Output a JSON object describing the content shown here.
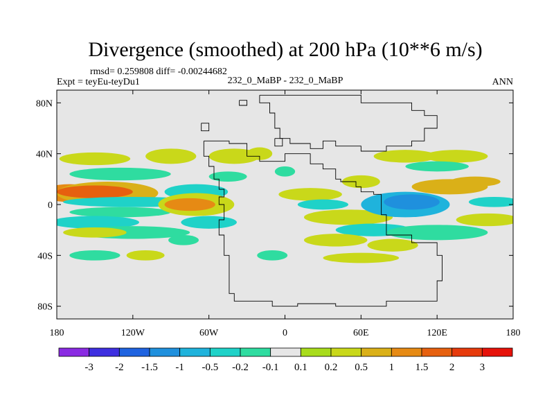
{
  "chart_data": {
    "type": "heatmap",
    "title": "Divergence (smoothed) at 200 hPa (10**6 m/s)",
    "stats_text": "rmsd= 0.259808 diff= -0.00244682",
    "experiment": "Expt = teyEu-teyDu1",
    "case": "232_0_MaBP - 232_0_MaBP",
    "period": "ANN",
    "x_ticks": [
      "180",
      "120W",
      "60W",
      "0",
      "60E",
      "120E",
      "180"
    ],
    "x_tick_values": [
      -180,
      -120,
      -60,
      0,
      60,
      120,
      180
    ],
    "y_ticks": [
      "80N",
      "40N",
      "0",
      "40S",
      "80S"
    ],
    "y_tick_values": [
      80,
      40,
      0,
      -40,
      -80
    ],
    "xlim": [
      -180,
      180
    ],
    "ylim": [
      -90,
      90
    ],
    "colorbar": {
      "labels": [
        "-3",
        "-2",
        "-1.5",
        "-1",
        "-0.5",
        "-0.2",
        "-0.1",
        "0.1",
        "0.2",
        "0.5",
        "1",
        "1.5",
        "2",
        "3"
      ],
      "colors": [
        "#8a2be2",
        "#3e2fe0",
        "#1f63e0",
        "#1f90dd",
        "#1fb3dc",
        "#1fd2c8",
        "#2fdca0",
        "#e6e6e6",
        "#a8dc1c",
        "#c9d81a",
        "#dab018",
        "#e68a14",
        "#e6600f",
        "#e63a0c",
        "#e6120a"
      ]
    },
    "blobs": [
      {
        "lon": -170,
        "lat": 9,
        "rx": 22,
        "ry": 7,
        "v": 1.0
      },
      {
        "lon": -140,
        "lat": 9,
        "rx": 40,
        "ry": 9,
        "v": 0.5
      },
      {
        "lon": -150,
        "lat": 10,
        "rx": 30,
        "ry": 5,
        "v": 1.5
      },
      {
        "lon": -120,
        "lat": 2,
        "rx": 55,
        "ry": 4,
        "v": -0.4
      },
      {
        "lon": -130,
        "lat": -6,
        "rx": 40,
        "ry": 4,
        "v": -0.15
      },
      {
        "lon": -150,
        "lat": -14,
        "rx": 35,
        "ry": 5,
        "v": -0.4
      },
      {
        "lon": -120,
        "lat": -22,
        "rx": 45,
        "ry": 5,
        "v": -0.15
      },
      {
        "lon": -150,
        "lat": -22,
        "rx": 25,
        "ry": 4,
        "v": 0.3
      },
      {
        "lon": -130,
        "lat": 24,
        "rx": 40,
        "ry": 5,
        "v": -0.15
      },
      {
        "lon": -150,
        "lat": 36,
        "rx": 28,
        "ry": 5,
        "v": 0.3
      },
      {
        "lon": -90,
        "lat": 38,
        "rx": 20,
        "ry": 6,
        "v": 0.3
      },
      {
        "lon": -70,
        "lat": 10,
        "rx": 25,
        "ry": 6,
        "v": -0.3
      },
      {
        "lon": -70,
        "lat": 0,
        "rx": 30,
        "ry": 9,
        "v": 0.4
      },
      {
        "lon": -75,
        "lat": 0,
        "rx": 20,
        "ry": 5,
        "v": 1.2
      },
      {
        "lon": -60,
        "lat": -14,
        "rx": 22,
        "ry": 5,
        "v": -0.3
      },
      {
        "lon": -40,
        "lat": 38,
        "rx": 20,
        "ry": 6,
        "v": 0.3
      },
      {
        "lon": -45,
        "lat": 22,
        "rx": 15,
        "ry": 4,
        "v": -0.15
      },
      {
        "lon": -80,
        "lat": -28,
        "rx": 12,
        "ry": 4,
        "v": -0.15
      },
      {
        "lon": -20,
        "lat": 40,
        "rx": 10,
        "ry": 5,
        "v": 0.25
      },
      {
        "lon": 0,
        "lat": 26,
        "rx": 8,
        "ry": 4,
        "v": -0.15
      },
      {
        "lon": 20,
        "lat": 8,
        "rx": 25,
        "ry": 5,
        "v": 0.3
      },
      {
        "lon": 30,
        "lat": 0,
        "rx": 20,
        "ry": 4,
        "v": -0.3
      },
      {
        "lon": 50,
        "lat": -10,
        "rx": 35,
        "ry": 6,
        "v": 0.4
      },
      {
        "lon": 70,
        "lat": -20,
        "rx": 30,
        "ry": 5,
        "v": -0.3
      },
      {
        "lon": 40,
        "lat": -28,
        "rx": 25,
        "ry": 5,
        "v": 0.3
      },
      {
        "lon": 95,
        "lat": 0,
        "rx": 35,
        "ry": 10,
        "v": -0.6
      },
      {
        "lon": 100,
        "lat": 2,
        "rx": 22,
        "ry": 6,
        "v": -1.1
      },
      {
        "lon": 130,
        "lat": 14,
        "rx": 30,
        "ry": 6,
        "v": 0.5
      },
      {
        "lon": 150,
        "lat": 18,
        "rx": 20,
        "ry": 4,
        "v": 0.9
      },
      {
        "lon": 160,
        "lat": -12,
        "rx": 25,
        "ry": 5,
        "v": 0.3
      },
      {
        "lon": 165,
        "lat": 2,
        "rx": 20,
        "ry": 4,
        "v": -0.3
      },
      {
        "lon": 120,
        "lat": -22,
        "rx": 40,
        "ry": 6,
        "v": -0.15
      },
      {
        "lon": 85,
        "lat": -32,
        "rx": 20,
        "ry": 5,
        "v": 0.3
      },
      {
        "lon": 95,
        "lat": 38,
        "rx": 25,
        "ry": 5,
        "v": 0.3
      },
      {
        "lon": 135,
        "lat": 38,
        "rx": 25,
        "ry": 5,
        "v": 0.25
      },
      {
        "lon": 120,
        "lat": 30,
        "rx": 25,
        "ry": 4,
        "v": -0.15
      },
      {
        "lon": 60,
        "lat": 18,
        "rx": 15,
        "ry": 5,
        "v": 0.3
      },
      {
        "lon": -150,
        "lat": -40,
        "rx": 20,
        "ry": 4,
        "v": -0.15
      },
      {
        "lon": -110,
        "lat": -40,
        "rx": 15,
        "ry": 4,
        "v": 0.25
      },
      {
        "lon": -10,
        "lat": -40,
        "rx": 12,
        "ry": 4,
        "v": -0.15
      },
      {
        "lon": 60,
        "lat": -42,
        "rx": 30,
        "ry": 4,
        "v": 0.25
      }
    ],
    "continent_outline": [
      [
        [
          -64,
          50
        ],
        [
          -64,
          38
        ],
        [
          -60,
          38
        ],
        [
          -60,
          30
        ],
        [
          -56,
          30
        ],
        [
          -56,
          20
        ],
        [
          -52,
          20
        ],
        [
          -52,
          12
        ],
        [
          -48,
          12
        ],
        [
          -48,
          6
        ],
        [
          -52,
          6
        ],
        [
          -52,
          0
        ],
        [
          -48,
          0
        ],
        [
          -48,
          -12
        ],
        [
          -52,
          -12
        ],
        [
          -52,
          -24
        ],
        [
          -48,
          -24
        ],
        [
          -48,
          -40
        ],
        [
          -44,
          -40
        ],
        [
          -44,
          -70
        ],
        [
          -40,
          -70
        ],
        [
          -40,
          -76
        ],
        [
          -10,
          -76
        ],
        [
          -10,
          -80
        ],
        [
          10,
          -80
        ],
        [
          10,
          -78
        ],
        [
          40,
          -78
        ],
        [
          40,
          -80
        ],
        [
          80,
          -80
        ],
        [
          80,
          -76
        ],
        [
          120,
          -76
        ],
        [
          120,
          -60
        ],
        [
          124,
          -60
        ],
        [
          124,
          -40
        ],
        [
          120,
          -40
        ],
        [
          120,
          -30
        ],
        [
          100,
          -30
        ],
        [
          100,
          -24
        ],
        [
          80,
          -24
        ],
        [
          80,
          -8
        ],
        [
          76,
          -8
        ],
        [
          76,
          8
        ],
        [
          70,
          8
        ],
        [
          70,
          10
        ],
        [
          60,
          10
        ],
        [
          60,
          14
        ],
        [
          56,
          14
        ],
        [
          56,
          18
        ],
        [
          44,
          18
        ],
        [
          44,
          20
        ],
        [
          40,
          20
        ],
        [
          40,
          28
        ],
        [
          30,
          28
        ],
        [
          30,
          32
        ],
        [
          20,
          32
        ],
        [
          20,
          40
        ],
        [
          0,
          40
        ],
        [
          0,
          34
        ],
        [
          -20,
          34
        ],
        [
          -20,
          38
        ],
        [
          -30,
          38
        ],
        [
          -30,
          48
        ],
        [
          -44,
          48
        ],
        [
          -44,
          50
        ],
        [
          -64,
          50
        ]
      ],
      [
        [
          -20,
          86
        ],
        [
          -20,
          80
        ],
        [
          -12,
          80
        ],
        [
          -12,
          72
        ],
        [
          -8,
          72
        ],
        [
          -8,
          60
        ],
        [
          -4,
          60
        ],
        [
          -4,
          52
        ],
        [
          4,
          52
        ],
        [
          4,
          48
        ],
        [
          20,
          48
        ],
        [
          20,
          44
        ],
        [
          30,
          44
        ],
        [
          30,
          50
        ],
        [
          40,
          50
        ],
        [
          40,
          46
        ],
        [
          60,
          46
        ],
        [
          60,
          42
        ],
        [
          80,
          42
        ],
        [
          80,
          46
        ],
        [
          100,
          46
        ],
        [
          100,
          50
        ],
        [
          110,
          50
        ],
        [
          110,
          60
        ],
        [
          120,
          60
        ],
        [
          120,
          70
        ],
        [
          110,
          70
        ],
        [
          110,
          74
        ],
        [
          100,
          74
        ],
        [
          100,
          80
        ],
        [
          60,
          80
        ],
        [
          60,
          86
        ],
        [
          -20,
          86
        ]
      ],
      [
        [
          -36,
          82
        ],
        [
          -36,
          78
        ],
        [
          -30,
          78
        ],
        [
          -30,
          82
        ],
        [
          -36,
          82
        ]
      ],
      [
        [
          -8,
          52
        ],
        [
          -8,
          46
        ],
        [
          -2,
          46
        ],
        [
          -2,
          52
        ],
        [
          -8,
          52
        ]
      ],
      [
        [
          -66,
          64
        ],
        [
          -66,
          58
        ],
        [
          -60,
          58
        ],
        [
          -60,
          64
        ],
        [
          -66,
          64
        ]
      ]
    ]
  }
}
